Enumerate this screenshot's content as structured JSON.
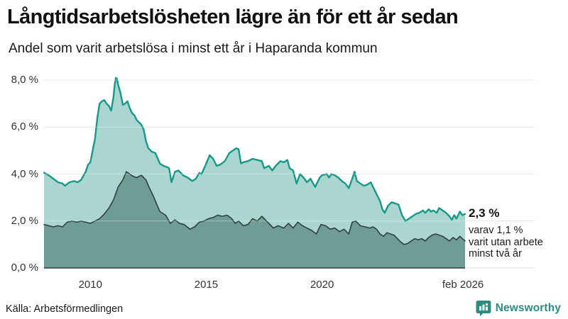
{
  "header": {
    "title": "Långtidsarbetslösheten lägre än för ett år sedan",
    "subtitle": "Andel som varit arbetslösa i minst ett år i Haparanda kommun"
  },
  "colors": {
    "accent_teal": "#16998b",
    "light_fill": "#abd6d0",
    "dark_line": "#31403e",
    "dark_fill": "#709c96",
    "gridline": "#dcdcdc",
    "axis": "#3a3a3a",
    "brand_teal": "#2b8c80"
  },
  "chart_data": {
    "type": "area",
    "unit": "%",
    "grid": true,
    "x_axis": {
      "start": 2008.0,
      "end": 2026.17,
      "ticks": [
        {
          "label": "2010",
          "year": 2010
        },
        {
          "label": "2015",
          "year": 2015
        },
        {
          "label": "2020",
          "year": 2020
        },
        {
          "label": "feb 2026",
          "year": 2026.08
        }
      ]
    },
    "y_axis": {
      "min": 0,
      "max": 8,
      "ticks": [
        {
          "label": "8,0 %",
          "value": 8
        },
        {
          "label": "6,0 %",
          "value": 6
        },
        {
          "label": "4,0 %",
          "value": 4
        },
        {
          "label": "2,0 %",
          "value": 2
        },
        {
          "label": "0,0 %",
          "value": 0
        }
      ]
    },
    "series": [
      {
        "name": "arbetslösa minst ett år",
        "line": "#16998b",
        "fill": "#abd6d0",
        "width": 2.4,
        "end_value": 2.3,
        "points": [
          [
            2008.0,
            4.05
          ],
          [
            2008.2,
            3.95
          ],
          [
            2008.4,
            3.8
          ],
          [
            2008.6,
            3.65
          ],
          [
            2008.8,
            3.6
          ],
          [
            2008.9,
            3.5
          ],
          [
            2009.1,
            3.65
          ],
          [
            2009.3,
            3.7
          ],
          [
            2009.45,
            3.65
          ],
          [
            2009.6,
            3.75
          ],
          [
            2009.8,
            4.1
          ],
          [
            2009.9,
            4.4
          ],
          [
            2010.0,
            4.5
          ],
          [
            2010.1,
            5.0
          ],
          [
            2010.2,
            5.5
          ],
          [
            2010.3,
            6.4
          ],
          [
            2010.4,
            7.0
          ],
          [
            2010.5,
            7.1
          ],
          [
            2010.6,
            7.15
          ],
          [
            2010.7,
            7.0
          ],
          [
            2010.8,
            6.9
          ],
          [
            2010.9,
            6.7
          ],
          [
            2011.0,
            7.3
          ],
          [
            2011.05,
            7.8
          ],
          [
            2011.1,
            8.1
          ],
          [
            2011.15,
            8.05
          ],
          [
            2011.2,
            7.8
          ],
          [
            2011.3,
            7.45
          ],
          [
            2011.4,
            6.95
          ],
          [
            2011.5,
            7.0
          ],
          [
            2011.6,
            7.1
          ],
          [
            2011.7,
            6.8
          ],
          [
            2011.8,
            6.6
          ],
          [
            2011.9,
            6.5
          ],
          [
            2012.0,
            6.3
          ],
          [
            2012.1,
            6.2
          ],
          [
            2012.2,
            6.1
          ],
          [
            2012.3,
            5.9
          ],
          [
            2012.4,
            5.4
          ],
          [
            2012.5,
            5.1
          ],
          [
            2012.65,
            4.95
          ],
          [
            2012.8,
            4.9
          ],
          [
            2013.0,
            4.45
          ],
          [
            2013.15,
            4.35
          ],
          [
            2013.3,
            4.3
          ],
          [
            2013.4,
            4.25
          ],
          [
            2013.5,
            3.65
          ],
          [
            2013.65,
            4.1
          ],
          [
            2013.8,
            4.15
          ],
          [
            2014.0,
            3.95
          ],
          [
            2014.2,
            3.85
          ],
          [
            2014.4,
            3.7
          ],
          [
            2014.55,
            3.8
          ],
          [
            2014.7,
            4.05
          ],
          [
            2014.8,
            4.0
          ],
          [
            2015.0,
            4.45
          ],
          [
            2015.15,
            4.8
          ],
          [
            2015.3,
            4.65
          ],
          [
            2015.45,
            4.35
          ],
          [
            2015.6,
            4.4
          ],
          [
            2015.8,
            4.55
          ],
          [
            2016.0,
            4.9
          ],
          [
            2016.15,
            5.0
          ],
          [
            2016.3,
            5.1
          ],
          [
            2016.4,
            5.05
          ],
          [
            2016.5,
            4.45
          ],
          [
            2016.6,
            4.5
          ],
          [
            2016.8,
            4.55
          ],
          [
            2017.0,
            4.65
          ],
          [
            2017.2,
            4.6
          ],
          [
            2017.4,
            4.55
          ],
          [
            2017.5,
            4.25
          ],
          [
            2017.7,
            4.35
          ],
          [
            2017.85,
            4.15
          ],
          [
            2018.0,
            4.35
          ],
          [
            2018.2,
            4.55
          ],
          [
            2018.35,
            4.5
          ],
          [
            2018.5,
            4.6
          ],
          [
            2018.6,
            4.25
          ],
          [
            2018.75,
            4.15
          ],
          [
            2018.9,
            3.6
          ],
          [
            2019.05,
            4.0
          ],
          [
            2019.2,
            3.85
          ],
          [
            2019.35,
            3.65
          ],
          [
            2019.5,
            3.8
          ],
          [
            2019.7,
            3.45
          ],
          [
            2019.9,
            3.85
          ],
          [
            2020.0,
            3.95
          ],
          [
            2020.2,
            4.0
          ],
          [
            2020.3,
            3.85
          ],
          [
            2020.4,
            4.0
          ],
          [
            2020.55,
            3.95
          ],
          [
            2020.7,
            3.85
          ],
          [
            2020.85,
            3.7
          ],
          [
            2021.0,
            3.6
          ],
          [
            2021.15,
            3.4
          ],
          [
            2021.3,
            3.8
          ],
          [
            2021.4,
            4.1
          ],
          [
            2021.5,
            3.7
          ],
          [
            2021.65,
            3.6
          ],
          [
            2021.8,
            3.5
          ],
          [
            2021.95,
            3.55
          ],
          [
            2022.1,
            3.65
          ],
          [
            2022.2,
            3.45
          ],
          [
            2022.35,
            3.15
          ],
          [
            2022.5,
            2.85
          ],
          [
            2022.6,
            2.5
          ],
          [
            2022.7,
            2.35
          ],
          [
            2022.85,
            2.65
          ],
          [
            2023.0,
            2.8
          ],
          [
            2023.15,
            2.75
          ],
          [
            2023.3,
            2.7
          ],
          [
            2023.45,
            2.25
          ],
          [
            2023.6,
            2.0
          ],
          [
            2023.75,
            2.1
          ],
          [
            2023.9,
            2.2
          ],
          [
            2024.05,
            2.3
          ],
          [
            2024.2,
            2.35
          ],
          [
            2024.35,
            2.45
          ],
          [
            2024.45,
            2.35
          ],
          [
            2024.6,
            2.5
          ],
          [
            2024.7,
            2.4
          ],
          [
            2024.8,
            2.45
          ],
          [
            2024.95,
            2.35
          ],
          [
            2025.05,
            2.55
          ],
          [
            2025.2,
            2.45
          ],
          [
            2025.35,
            2.35
          ],
          [
            2025.5,
            2.2
          ],
          [
            2025.6,
            2.05
          ],
          [
            2025.7,
            2.25
          ],
          [
            2025.8,
            2.1
          ],
          [
            2025.95,
            2.4
          ],
          [
            2026.05,
            2.25
          ],
          [
            2026.17,
            2.3
          ]
        ]
      },
      {
        "name": "arbetslösa minst två år",
        "line": "#31403e",
        "fill": "#709c96",
        "width": 1.6,
        "end_value": 1.1,
        "points": [
          [
            2008.0,
            1.85
          ],
          [
            2008.2,
            1.8
          ],
          [
            2008.4,
            1.75
          ],
          [
            2008.6,
            1.8
          ],
          [
            2008.8,
            1.75
          ],
          [
            2009.0,
            1.95
          ],
          [
            2009.2,
            2.0
          ],
          [
            2009.4,
            1.95
          ],
          [
            2009.6,
            2.0
          ],
          [
            2009.8,
            1.95
          ],
          [
            2010.0,
            1.9
          ],
          [
            2010.2,
            2.0
          ],
          [
            2010.4,
            2.1
          ],
          [
            2010.6,
            2.3
          ],
          [
            2010.8,
            2.55
          ],
          [
            2011.0,
            2.9
          ],
          [
            2011.2,
            3.45
          ],
          [
            2011.4,
            3.75
          ],
          [
            2011.55,
            4.1
          ],
          [
            2011.7,
            4.0
          ],
          [
            2011.85,
            3.9
          ],
          [
            2012.0,
            3.85
          ],
          [
            2012.2,
            3.95
          ],
          [
            2012.4,
            3.75
          ],
          [
            2012.55,
            3.4
          ],
          [
            2012.7,
            3.1
          ],
          [
            2012.85,
            2.75
          ],
          [
            2013.0,
            2.4
          ],
          [
            2013.25,
            2.25
          ],
          [
            2013.45,
            1.9
          ],
          [
            2013.65,
            2.05
          ],
          [
            2013.85,
            1.9
          ],
          [
            2014.05,
            1.85
          ],
          [
            2014.3,
            1.65
          ],
          [
            2014.5,
            1.75
          ],
          [
            2014.7,
            1.95
          ],
          [
            2014.9,
            2.0
          ],
          [
            2015.1,
            2.1
          ],
          [
            2015.3,
            2.15
          ],
          [
            2015.5,
            2.25
          ],
          [
            2015.7,
            2.2
          ],
          [
            2015.9,
            2.25
          ],
          [
            2016.1,
            2.1
          ],
          [
            2016.25,
            1.9
          ],
          [
            2016.4,
            2.0
          ],
          [
            2016.6,
            1.8
          ],
          [
            2016.8,
            1.85
          ],
          [
            2017.0,
            2.1
          ],
          [
            2017.2,
            2.0
          ],
          [
            2017.4,
            2.2
          ],
          [
            2017.55,
            2.05
          ],
          [
            2017.7,
            1.9
          ],
          [
            2017.9,
            1.7
          ],
          [
            2018.1,
            1.8
          ],
          [
            2018.35,
            1.7
          ],
          [
            2018.55,
            1.9
          ],
          [
            2018.75,
            1.7
          ],
          [
            2018.95,
            1.95
          ],
          [
            2019.15,
            1.8
          ],
          [
            2019.35,
            1.7
          ],
          [
            2019.55,
            1.6
          ],
          [
            2019.75,
            1.45
          ],
          [
            2019.95,
            1.85
          ],
          [
            2020.15,
            1.8
          ],
          [
            2020.35,
            1.65
          ],
          [
            2020.55,
            1.7
          ],
          [
            2020.75,
            1.55
          ],
          [
            2020.95,
            1.65
          ],
          [
            2021.15,
            1.45
          ],
          [
            2021.3,
            1.95
          ],
          [
            2021.45,
            2.0
          ],
          [
            2021.65,
            1.8
          ],
          [
            2021.85,
            1.75
          ],
          [
            2022.05,
            1.7
          ],
          [
            2022.2,
            1.75
          ],
          [
            2022.35,
            1.65
          ],
          [
            2022.5,
            1.45
          ],
          [
            2022.65,
            1.35
          ],
          [
            2022.8,
            1.5
          ],
          [
            2022.95,
            1.45
          ],
          [
            2023.1,
            1.4
          ],
          [
            2023.25,
            1.25
          ],
          [
            2023.4,
            1.1
          ],
          [
            2023.55,
            1.0
          ],
          [
            2023.7,
            1.05
          ],
          [
            2023.85,
            1.15
          ],
          [
            2024.0,
            1.25
          ],
          [
            2024.15,
            1.2
          ],
          [
            2024.3,
            1.25
          ],
          [
            2024.45,
            1.15
          ],
          [
            2024.6,
            1.3
          ],
          [
            2024.75,
            1.4
          ],
          [
            2024.9,
            1.45
          ],
          [
            2025.05,
            1.4
          ],
          [
            2025.2,
            1.35
          ],
          [
            2025.35,
            1.25
          ],
          [
            2025.5,
            1.15
          ],
          [
            2025.65,
            1.3
          ],
          [
            2025.8,
            1.2
          ],
          [
            2025.95,
            1.35
          ],
          [
            2026.05,
            1.25
          ],
          [
            2026.17,
            1.15
          ]
        ]
      }
    ],
    "annotation": {
      "value_label": "2,3 %",
      "sub_text": "varav 1,1 %\nvarit utan arbete\nminst två år"
    }
  },
  "footer": {
    "source": "Källa: Arbetsförmedlingen",
    "brand": "Newsworthy"
  }
}
